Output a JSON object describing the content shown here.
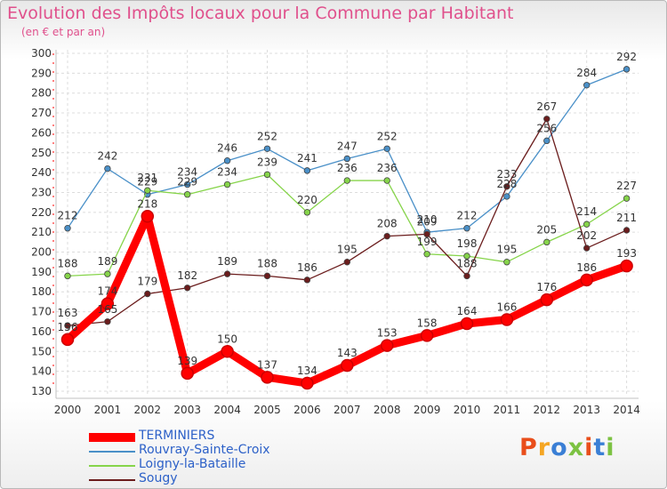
{
  "header": {
    "title": "Evolution des Impôts locaux pour la Commune par Habitant",
    "subtitle": "(en € et par an)"
  },
  "logo": {
    "text": "Proxiti",
    "colors": [
      "#e94e1b",
      "#f5a623",
      "#3a7fd5",
      "#7cc242",
      "#e94e1b",
      "#3a7fd5",
      "#7cc242"
    ]
  },
  "chart_data": {
    "type": "line",
    "x": [
      "2000",
      "2001",
      "2002",
      "2003",
      "2004",
      "2005",
      "2006",
      "2007",
      "2008",
      "2009",
      "2010",
      "2011",
      "2012",
      "2013",
      "2014"
    ],
    "ylim": [
      130,
      300
    ],
    "yticks": [
      130,
      140,
      150,
      160,
      170,
      180,
      190,
      200,
      210,
      220,
      230,
      240,
      250,
      260,
      270,
      280,
      290,
      300
    ],
    "grid": true,
    "legend_position": "bottom-left",
    "series": [
      {
        "name": "TERMINIERS",
        "color": "#ff0000",
        "values": [
          156,
          174,
          218,
          139,
          150,
          137,
          134,
          143,
          153,
          158,
          164,
          166,
          176,
          186,
          193
        ],
        "labels": [
          "156",
          "174",
          "218",
          "139",
          "150",
          "137",
          "134",
          "143",
          "153",
          "158",
          "164",
          "166",
          "176",
          "186",
          "193"
        ]
      },
      {
        "name": "Rouvray-Sainte-Croix",
        "color": "#4a90c8",
        "values": [
          212,
          242,
          229,
          234,
          246,
          252,
          241,
          247,
          252,
          210,
          212,
          228,
          256,
          284,
          292
        ],
        "labels": [
          "212",
          "242",
          "229",
          "234",
          "246",
          "252",
          "241",
          "247",
          "252",
          "210",
          "212",
          "228",
          "256",
          "284",
          "292"
        ]
      },
      {
        "name": "Loigny-la-Bataille",
        "color": "#86d44a",
        "values": [
          188,
          189,
          231,
          229,
          234,
          239,
          220,
          236,
          236,
          199,
          198,
          195,
          205,
          214,
          227
        ],
        "labels": [
          "188",
          "189",
          "231",
          "229",
          "234",
          "239",
          "220",
          "236",
          "236",
          "199",
          "198",
          "195",
          "205",
          "214",
          "227"
        ]
      },
      {
        "name": "Sougy",
        "color": "#6b1d1d",
        "values": [
          163,
          165,
          179,
          182,
          189,
          188,
          186,
          195,
          208,
          209,
          188,
          233,
          267,
          202,
          211
        ],
        "labels": [
          "163",
          "165",
          "179",
          "182",
          "189",
          "188",
          "186",
          "195",
          "208",
          "209",
          "188",
          "233",
          "267",
          "202",
          "211"
        ]
      }
    ]
  }
}
